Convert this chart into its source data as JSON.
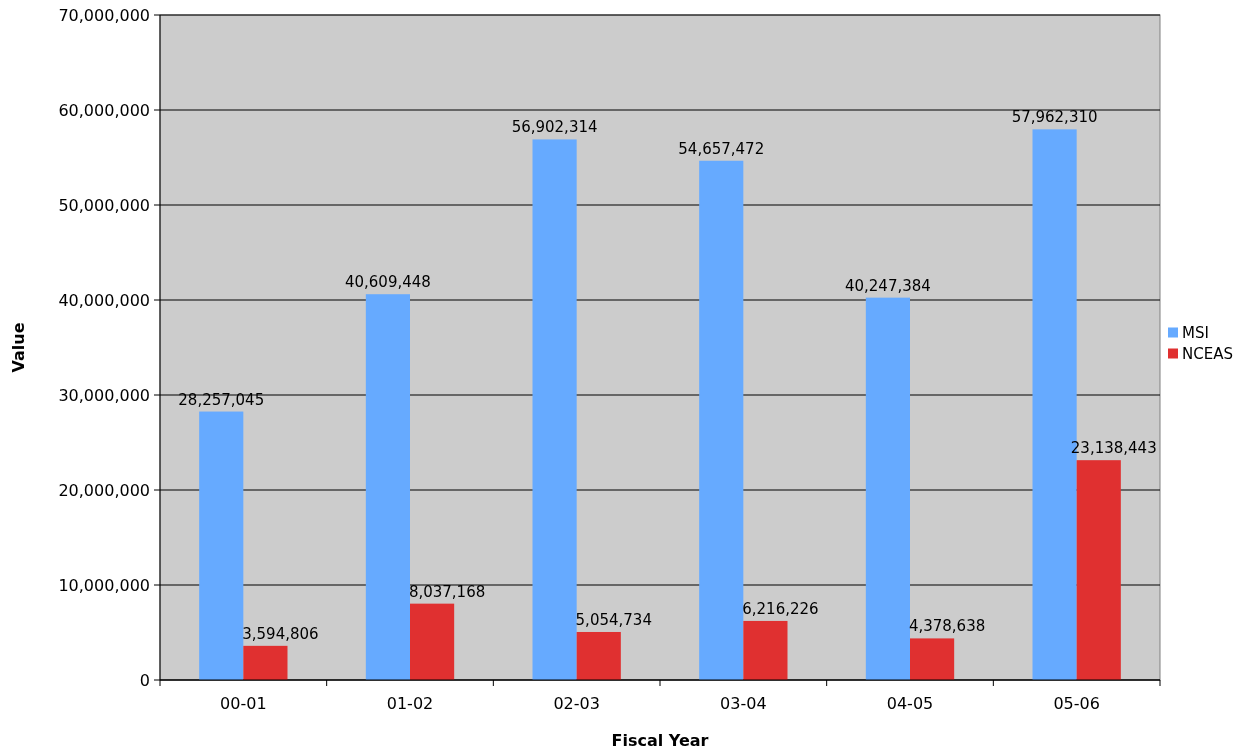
{
  "chart_data": {
    "type": "bar",
    "xlabel": "Fiscal Year",
    "ylabel": "Value",
    "categories": [
      "00-01",
      "01-02",
      "02-03",
      "03-04",
      "04-05",
      "05-06"
    ],
    "series": [
      {
        "name": "MSI",
        "color": "#66aaff",
        "values": [
          28257045,
          40609448,
          56902314,
          54657472,
          40247384,
          57962310
        ],
        "value_labels": [
          "28,257,045",
          "40,609,448",
          "56,902,314",
          "54,657,472",
          "40,247,384",
          "57,962,310"
        ]
      },
      {
        "name": "NCEAS",
        "color": "#e03030",
        "values": [
          3594806,
          8037168,
          5054734,
          6216226,
          4378638,
          23138443
        ],
        "value_labels": [
          "3,594,806",
          "8,037,168",
          "5,054,734",
          "6,216,226",
          "4,378,638",
          "23,138,443"
        ]
      }
    ],
    "ylim": [
      0,
      70000000
    ],
    "yticks": [
      {
        "value": 0,
        "label": "0"
      },
      {
        "value": 10000000,
        "label": "10,000,000"
      },
      {
        "value": 20000000,
        "label": "20,000,000"
      },
      {
        "value": 30000000,
        "label": "30,000,000"
      },
      {
        "value": 40000000,
        "label": "40,000,000"
      },
      {
        "value": 50000000,
        "label": "50,000,000"
      },
      {
        "value": 60000000,
        "label": "60,000,000"
      },
      {
        "value": 70000000,
        "label": "70,000,000"
      }
    ],
    "grid": "y",
    "legend": "right"
  }
}
